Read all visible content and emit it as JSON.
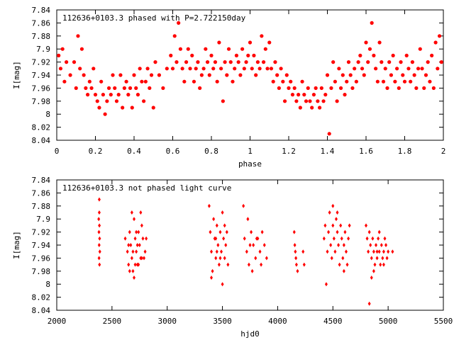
{
  "colors": {
    "points": "#ff0000",
    "axes": "#000000",
    "background": "#ffffff"
  },
  "chart_data": [
    {
      "type": "scatter",
      "title": "112636+0103.3 phased with P=2.722150day",
      "xlabel": "phase",
      "ylabel": "I[mag]",
      "xlim": [
        0,
        2
      ],
      "ylim": [
        7.84,
        8.04
      ],
      "y_inverted": true,
      "grid": false,
      "marker": "filled-circle",
      "x_ticks": [
        0,
        0.2,
        0.4,
        0.6,
        0.8,
        1,
        1.2,
        1.4,
        1.6,
        1.8,
        2
      ],
      "x_tick_labels": [
        "0",
        "0.2",
        "0.4",
        "0.6",
        "0.8",
        "1",
        "1.2",
        "1.4",
        "1.6",
        "1.8",
        "2"
      ],
      "y_ticks": [
        7.84,
        7.86,
        7.88,
        7.9,
        7.92,
        7.94,
        7.96,
        7.98,
        8,
        8.02,
        8.04
      ],
      "y_tick_labels": [
        "7.84",
        "7.86",
        "7.88",
        "7.9",
        "7.92",
        "7.94",
        "7.96",
        "7.98",
        "8",
        "8.02",
        "8.04"
      ],
      "points": [
        [
          0.01,
          7.91
        ],
        [
          0.02,
          7.93
        ],
        [
          0.03,
          7.9
        ],
        [
          0.04,
          7.95
        ],
        [
          0.05,
          7.92
        ],
        [
          0.07,
          7.94
        ],
        [
          0.09,
          7.92
        ],
        [
          0.1,
          7.96
        ],
        [
          0.11,
          7.88
        ],
        [
          0.12,
          7.93
        ],
        [
          0.13,
          7.9
        ],
        [
          0.14,
          7.94
        ],
        [
          0.15,
          7.96
        ],
        [
          0.16,
          7.97
        ],
        [
          0.17,
          7.95
        ],
        [
          0.18,
          7.96
        ],
        [
          0.19,
          7.93
        ],
        [
          0.2,
          7.97
        ],
        [
          0.21,
          7.98
        ],
        [
          0.22,
          7.99
        ],
        [
          0.23,
          7.95
        ],
        [
          0.24,
          7.97
        ],
        [
          0.25,
          8.0
        ],
        [
          0.26,
          7.98
        ],
        [
          0.27,
          7.96
        ],
        [
          0.28,
          7.97
        ],
        [
          0.29,
          7.94
        ],
        [
          0.3,
          7.96
        ],
        [
          0.31,
          7.98
        ],
        [
          0.32,
          7.97
        ],
        [
          0.33,
          7.94
        ],
        [
          0.34,
          7.99
        ],
        [
          0.35,
          7.96
        ],
        [
          0.36,
          7.95
        ],
        [
          0.37,
          7.97
        ],
        [
          0.38,
          7.96
        ],
        [
          0.39,
          7.99
        ],
        [
          0.4,
          7.94
        ],
        [
          0.41,
          7.96
        ],
        [
          0.42,
          7.97
        ],
        [
          0.43,
          7.93
        ],
        [
          0.44,
          7.95
        ],
        [
          0.45,
          7.98
        ],
        [
          0.46,
          7.95
        ],
        [
          0.47,
          7.93
        ],
        [
          0.48,
          7.96
        ],
        [
          0.49,
          7.94
        ],
        [
          0.5,
          7.99
        ],
        [
          0.51,
          7.92
        ],
        [
          0.53,
          7.94
        ],
        [
          0.55,
          7.96
        ],
        [
          0.57,
          7.93
        ],
        [
          0.59,
          7.91
        ],
        [
          0.6,
          7.93
        ],
        [
          0.61,
          7.88
        ],
        [
          0.62,
          7.92
        ],
        [
          0.63,
          7.86
        ],
        [
          0.64,
          7.9
        ],
        [
          0.65,
          7.93
        ],
        [
          0.66,
          7.95
        ],
        [
          0.67,
          7.92
        ],
        [
          0.68,
          7.9
        ],
        [
          0.69,
          7.93
        ],
        [
          0.7,
          7.91
        ],
        [
          0.71,
          7.95
        ],
        [
          0.72,
          7.93
        ],
        [
          0.73,
          7.92
        ],
        [
          0.74,
          7.96
        ],
        [
          0.75,
          7.94
        ],
        [
          0.76,
          7.93
        ],
        [
          0.77,
          7.9
        ],
        [
          0.78,
          7.92
        ],
        [
          0.79,
          7.94
        ],
        [
          0.8,
          7.91
        ],
        [
          0.81,
          7.93
        ],
        [
          0.82,
          7.92
        ],
        [
          0.83,
          7.95
        ],
        [
          0.84,
          7.89
        ],
        [
          0.85,
          7.93
        ],
        [
          0.86,
          7.98
        ],
        [
          0.87,
          7.92
        ],
        [
          0.88,
          7.94
        ],
        [
          0.89,
          7.9
        ],
        [
          0.9,
          7.92
        ],
        [
          0.91,
          7.95
        ],
        [
          0.92,
          7.93
        ],
        [
          0.93,
          7.91
        ],
        [
          0.94,
          7.92
        ],
        [
          0.95,
          7.94
        ],
        [
          0.96,
          7.9
        ],
        [
          0.97,
          7.93
        ],
        [
          0.98,
          7.92
        ],
        [
          0.99,
          7.91
        ],
        [
          1.0,
          7.89
        ],
        [
          1.01,
          7.93
        ],
        [
          1.02,
          7.91
        ],
        [
          1.03,
          7.94
        ],
        [
          1.04,
          7.92
        ],
        [
          1.05,
          7.93
        ],
        [
          1.06,
          7.88
        ],
        [
          1.07,
          7.92
        ],
        [
          1.08,
          7.9
        ],
        [
          1.09,
          7.93
        ],
        [
          1.1,
          7.89
        ],
        [
          1.11,
          7.93
        ],
        [
          1.12,
          7.95
        ],
        [
          1.13,
          7.92
        ],
        [
          1.14,
          7.94
        ],
        [
          1.15,
          7.96
        ],
        [
          1.16,
          7.93
        ],
        [
          1.17,
          7.95
        ],
        [
          1.18,
          7.98
        ],
        [
          1.19,
          7.94
        ],
        [
          1.2,
          7.96
        ],
        [
          1.21,
          7.95
        ],
        [
          1.22,
          7.97
        ],
        [
          1.23,
          7.96
        ],
        [
          1.24,
          7.98
        ],
        [
          1.25,
          7.97
        ],
        [
          1.26,
          7.99
        ],
        [
          1.27,
          7.95
        ],
        [
          1.28,
          7.97
        ],
        [
          1.29,
          7.98
        ],
        [
          1.3,
          7.96
        ],
        [
          1.31,
          7.98
        ],
        [
          1.32,
          7.99
        ],
        [
          1.33,
          7.97
        ],
        [
          1.34,
          7.96
        ],
        [
          1.35,
          7.98
        ],
        [
          1.36,
          7.99
        ],
        [
          1.37,
          7.96
        ],
        [
          1.38,
          7.98
        ],
        [
          1.39,
          7.97
        ],
        [
          1.4,
          7.94
        ],
        [
          1.41,
          8.03
        ],
        [
          1.42,
          7.96
        ],
        [
          1.43,
          7.92
        ],
        [
          1.44,
          7.95
        ],
        [
          1.45,
          7.98
        ],
        [
          1.46,
          7.93
        ],
        [
          1.47,
          7.96
        ],
        [
          1.48,
          7.94
        ],
        [
          1.49,
          7.97
        ],
        [
          1.5,
          7.95
        ],
        [
          1.51,
          7.92
        ],
        [
          1.52,
          7.94
        ],
        [
          1.53,
          7.96
        ],
        [
          1.54,
          7.93
        ],
        [
          1.55,
          7.95
        ],
        [
          1.56,
          7.92
        ],
        [
          1.57,
          7.91
        ],
        [
          1.58,
          7.93
        ],
        [
          1.59,
          7.94
        ],
        [
          1.6,
          7.89
        ],
        [
          1.61,
          7.92
        ],
        [
          1.62,
          7.9
        ],
        [
          1.63,
          7.86
        ],
        [
          1.64,
          7.91
        ],
        [
          1.65,
          7.93
        ],
        [
          1.66,
          7.95
        ],
        [
          1.67,
          7.89
        ],
        [
          1.68,
          7.92
        ],
        [
          1.69,
          7.95
        ],
        [
          1.7,
          7.93
        ],
        [
          1.71,
          7.96
        ],
        [
          1.72,
          7.92
        ],
        [
          1.73,
          7.94
        ],
        [
          1.74,
          7.91
        ],
        [
          1.75,
          7.95
        ],
        [
          1.76,
          7.93
        ],
        [
          1.77,
          7.96
        ],
        [
          1.78,
          7.92
        ],
        [
          1.79,
          7.94
        ],
        [
          1.8,
          7.95
        ],
        [
          1.81,
          7.91
        ],
        [
          1.82,
          7.93
        ],
        [
          1.83,
          7.95
        ],
        [
          1.84,
          7.92
        ],
        [
          1.85,
          7.94
        ],
        [
          1.86,
          7.96
        ],
        [
          1.87,
          7.93
        ],
        [
          1.88,
          7.9
        ],
        [
          1.89,
          7.93
        ],
        [
          1.9,
          7.96
        ],
        [
          1.91,
          7.94
        ],
        [
          1.92,
          7.92
        ],
        [
          1.93,
          7.95
        ],
        [
          1.94,
          7.91
        ],
        [
          1.95,
          7.96
        ],
        [
          1.96,
          7.89
        ],
        [
          1.97,
          7.93
        ],
        [
          1.98,
          7.88
        ],
        [
          1.99,
          7.92
        ]
      ]
    },
    {
      "type": "scatter",
      "title": "112636+0103.3 not phased light curve",
      "xlabel": "hjd0",
      "ylabel": "I[mag]",
      "xlim": [
        2000,
        5500
      ],
      "ylim": [
        7.84,
        8.04
      ],
      "y_inverted": true,
      "grid": false,
      "marker": "diamond",
      "x_ticks": [
        2000,
        2500,
        3000,
        3500,
        4000,
        4500,
        5000,
        5500
      ],
      "x_tick_labels": [
        "2000",
        "2500",
        "3000",
        "3500",
        "4000",
        "4500",
        "5000",
        "5500"
      ],
      "y_ticks": [
        7.84,
        7.86,
        7.88,
        7.9,
        7.92,
        7.94,
        7.96,
        7.98,
        8,
        8.02,
        8.04
      ],
      "y_tick_labels": [
        "7.84",
        "7.86",
        "7.88",
        "7.9",
        "7.92",
        "7.94",
        "7.96",
        "7.98",
        "8",
        "8.02",
        "8.04"
      ],
      "points": [
        [
          2385,
          7.87
        ],
        [
          2380,
          7.9
        ],
        [
          2386,
          7.91
        ],
        [
          2382,
          7.92
        ],
        [
          2388,
          7.93
        ],
        [
          2384,
          7.94
        ],
        [
          2390,
          7.95
        ],
        [
          2383,
          7.96
        ],
        [
          2387,
          7.97
        ],
        [
          2385,
          7.89
        ],
        [
          2620,
          7.93
        ],
        [
          2640,
          7.95
        ],
        [
          2650,
          7.97
        ],
        [
          2660,
          7.92
        ],
        [
          2670,
          7.94
        ],
        [
          2680,
          7.96
        ],
        [
          2690,
          7.98
        ],
        [
          2700,
          7.9
        ],
        [
          2710,
          7.93
        ],
        [
          2720,
          7.95
        ],
        [
          2730,
          7.97
        ],
        [
          2740,
          7.92
        ],
        [
          2750,
          7.94
        ],
        [
          2760,
          7.96
        ],
        [
          2770,
          7.91
        ],
        [
          2780,
          7.93
        ],
        [
          2790,
          7.96
        ],
        [
          2800,
          7.95
        ],
        [
          2810,
          7.93
        ],
        [
          2680,
          7.89
        ],
        [
          2700,
          7.99
        ],
        [
          2720,
          7.92
        ],
        [
          2660,
          7.98
        ],
        [
          2740,
          7.97
        ],
        [
          2760,
          7.89
        ],
        [
          2690,
          7.95
        ],
        [
          2710,
          7.97
        ],
        [
          2730,
          7.94
        ],
        [
          2650,
          7.94
        ],
        [
          2770,
          7.96
        ],
        [
          3380,
          7.88
        ],
        [
          3390,
          7.92
        ],
        [
          3400,
          7.95
        ],
        [
          3410,
          7.98
        ],
        [
          3420,
          7.9
        ],
        [
          3430,
          7.93
        ],
        [
          3440,
          7.96
        ],
        [
          3450,
          7.91
        ],
        [
          3460,
          7.94
        ],
        [
          3470,
          7.97
        ],
        [
          3480,
          7.92
        ],
        [
          3490,
          7.95
        ],
        [
          3500,
          7.89
        ],
        [
          3510,
          7.93
        ],
        [
          3520,
          7.96
        ],
        [
          3530,
          7.94
        ],
        [
          3540,
          7.92
        ],
        [
          3550,
          7.97
        ],
        [
          3400,
          7.99
        ],
        [
          3450,
          7.95
        ],
        [
          3500,
          8.0
        ],
        [
          3520,
          7.91
        ],
        [
          3440,
          7.93
        ],
        [
          3480,
          7.96
        ],
        [
          3690,
          7.88
        ],
        [
          3700,
          7.93
        ],
        [
          3720,
          7.95
        ],
        [
          3740,
          7.97
        ],
        [
          3760,
          7.92
        ],
        [
          3780,
          7.94
        ],
        [
          3800,
          7.96
        ],
        [
          3820,
          7.93
        ],
        [
          3840,
          7.95
        ],
        [
          3860,
          7.92
        ],
        [
          3880,
          7.94
        ],
        [
          3900,
          7.96
        ],
        [
          3730,
          7.9
        ],
        [
          3770,
          7.98
        ],
        [
          3810,
          7.93
        ],
        [
          3850,
          7.97
        ],
        [
          3750,
          7.94
        ],
        [
          4150,
          7.92
        ],
        [
          4160,
          7.95
        ],
        [
          4170,
          7.97
        ],
        [
          4180,
          7.98
        ],
        [
          4155,
          7.94
        ],
        [
          4230,
          7.95
        ],
        [
          4240,
          7.97
        ],
        [
          4165,
          7.96
        ],
        [
          4420,
          7.93
        ],
        [
          4430,
          7.91
        ],
        [
          4440,
          8.0
        ],
        [
          4450,
          7.95
        ],
        [
          4460,
          7.92
        ],
        [
          4470,
          7.89
        ],
        [
          4480,
          7.94
        ],
        [
          4490,
          7.96
        ],
        [
          4500,
          7.91
        ],
        [
          4510,
          7.93
        ],
        [
          4520,
          7.95
        ],
        [
          4530,
          7.9
        ],
        [
          4540,
          7.92
        ],
        [
          4550,
          7.94
        ],
        [
          4560,
          7.97
        ],
        [
          4570,
          7.91
        ],
        [
          4580,
          7.93
        ],
        [
          4590,
          7.96
        ],
        [
          4600,
          7.94
        ],
        [
          4610,
          7.92
        ],
        [
          4620,
          7.95
        ],
        [
          4630,
          7.97
        ],
        [
          4640,
          7.93
        ],
        [
          4650,
          7.91
        ],
        [
          4500,
          7.88
        ],
        [
          4540,
          7.89
        ],
        [
          4600,
          7.98
        ],
        [
          4800,
          7.91
        ],
        [
          4810,
          7.93
        ],
        [
          4820,
          7.95
        ],
        [
          4830,
          7.92
        ],
        [
          4840,
          7.94
        ],
        [
          4850,
          7.96
        ],
        [
          4860,
          7.93
        ],
        [
          4870,
          7.95
        ],
        [
          4880,
          7.97
        ],
        [
          4890,
          7.94
        ],
        [
          4900,
          7.96
        ],
        [
          4910,
          7.93
        ],
        [
          4920,
          7.95
        ],
        [
          4930,
          7.97
        ],
        [
          4940,
          7.94
        ],
        [
          4950,
          7.96
        ],
        [
          4960,
          7.95
        ],
        [
          4970,
          7.93
        ],
        [
          4980,
          7.94
        ],
        [
          4990,
          7.96
        ],
        [
          5000,
          7.95
        ],
        [
          4830,
          8.03
        ],
        [
          4870,
          7.98
        ],
        [
          4920,
          7.92
        ],
        [
          4850,
          7.99
        ],
        [
          4960,
          7.97
        ],
        [
          4900,
          7.95
        ],
        [
          5040,
          7.95
        ]
      ]
    }
  ]
}
